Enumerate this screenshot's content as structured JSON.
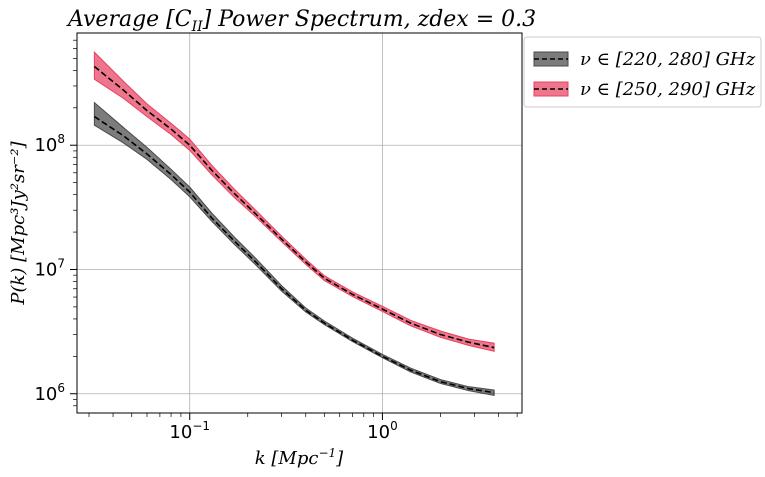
{
  "chart_data": {
    "type": "area",
    "title_text": "Average [C",
    "title_sub": "II",
    "title_text2": "] Power Spectrum,  zdex = 0.3",
    "xlabel": "k [Mpc",
    "xlabel_sup": "−1",
    "xlabel_end": "]",
    "ylabel": "P(k) [Mpc³Jy²sr⁻²]",
    "xscale": "log",
    "yscale": "log",
    "xlim": [
      0.026,
      5.3
    ],
    "ylim": [
      700000,
      800000000
    ],
    "grid": true,
    "legend_position": "outside-top-right",
    "x_ticks": [
      {
        "value": 0.1,
        "base": "10",
        "exp": "−1"
      },
      {
        "value": 1.0,
        "base": "10",
        "exp": "0"
      }
    ],
    "y_ticks": [
      {
        "value": 1000000,
        "base": "10",
        "exp": "6"
      },
      {
        "value": 10000000,
        "base": "10",
        "exp": "7"
      },
      {
        "value": 100000000,
        "base": "10",
        "exp": "8"
      }
    ],
    "x": [
      0.032,
      0.045,
      0.06,
      0.08,
      0.1,
      0.13,
      0.17,
      0.22,
      0.3,
      0.4,
      0.5,
      0.7,
      1.0,
      1.4,
      2.0,
      2.8,
      3.8
    ],
    "series": [
      {
        "name": "ν ∈ [220, 280] GHz",
        "color": "#4a4a4a",
        "line_color": "#000000",
        "values": [
          170000000,
          120000000,
          85000000,
          58000000,
          42000000,
          26000000,
          17000000,
          11500000,
          7000000,
          4700000,
          3700000,
          2700000,
          2000000,
          1550000,
          1250000,
          1100000,
          1020000
        ],
        "lower": [
          145000000,
          105000000,
          77000000,
          53000000,
          38500000,
          24500000,
          16000000,
          10900000,
          6700000,
          4550000,
          3600000,
          2630000,
          1950000,
          1500000,
          1210000,
          1060000,
          970000
        ],
        "upper": [
          220000000,
          140000000,
          96000000,
          64000000,
          46000000,
          28500000,
          18300000,
          12300000,
          7400000,
          4900000,
          3850000,
          2800000,
          2070000,
          1610000,
          1300000,
          1140000,
          1070000
        ]
      },
      {
        "name": "ν ∈ [250, 290] GHz",
        "color": "#e8415f",
        "line_color": "#000000",
        "values": [
          430000000,
          280000000,
          190000000,
          135000000,
          100000000,
          63000000,
          41000000,
          28000000,
          17500000,
          11500000,
          8500000,
          6300000,
          4800000,
          3700000,
          3000000,
          2600000,
          2350000
        ],
        "lower": [
          340000000,
          240000000,
          170000000,
          122000000,
          91000000,
          58000000,
          38000000,
          26500000,
          16700000,
          11000000,
          8150000,
          6050000,
          4600000,
          3520000,
          2850000,
          2450000,
          2200000
        ],
        "upper": [
          560000000,
          330000000,
          215000000,
          150000000,
          112000000,
          69000000,
          44500000,
          30000000,
          18500000,
          12100000,
          8900000,
          6600000,
          5050000,
          3900000,
          3200000,
          2750000,
          2550000
        ]
      }
    ],
    "legend": [
      {
        "prefix": "ν ∈ [220, 280] ",
        "unit": "GHz"
      },
      {
        "prefix": "ν ∈ [250, 290] ",
        "unit": "GHz"
      }
    ]
  }
}
